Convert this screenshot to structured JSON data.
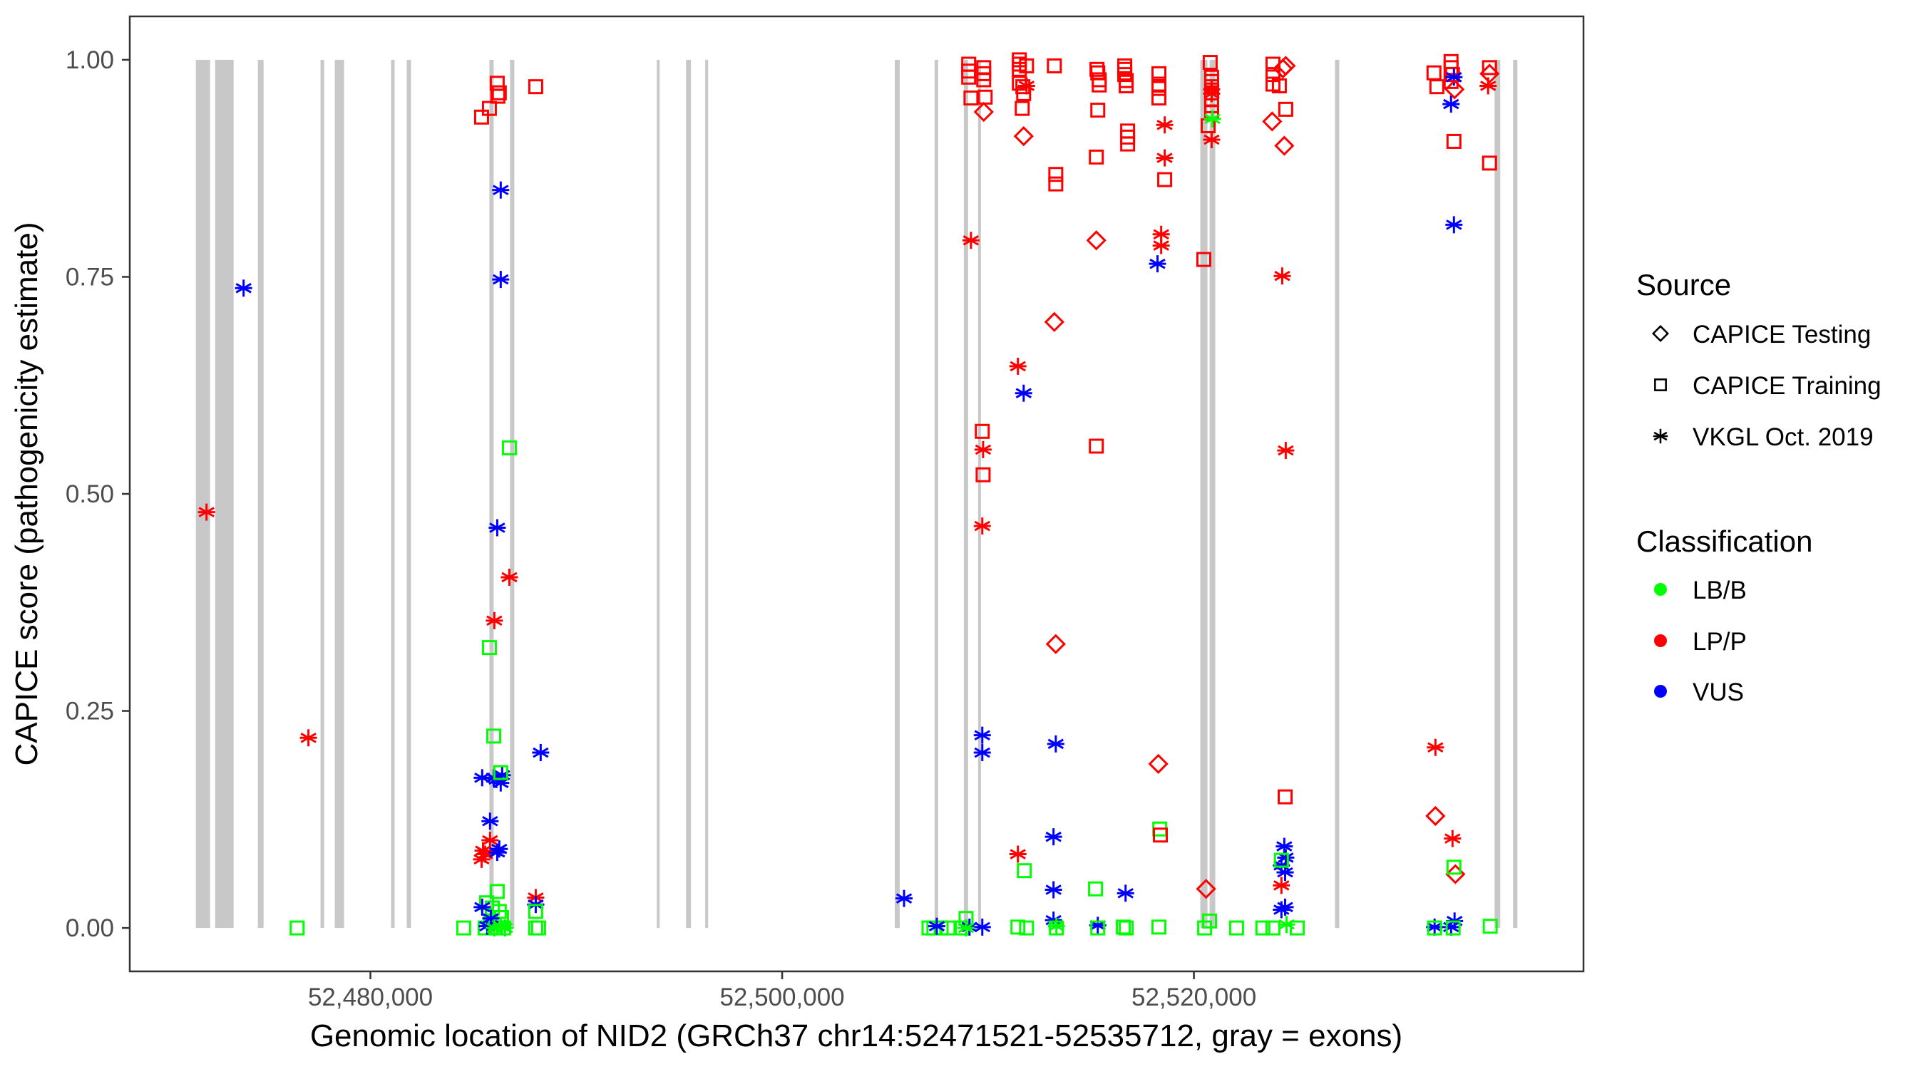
{
  "chart_data": {
    "type": "scatter",
    "title": "",
    "xlabel": "Genomic location of NID2 (GRCh37 chr14:52471521-52535712, gray = exons)",
    "ylabel": "CAPICE score (pathogenicity estimate)",
    "xlim": [
      52468311,
      52538922
    ],
    "ylim": [
      -0.05,
      1.05
    ],
    "grid": false,
    "x_ticks": [
      52480000,
      52500000,
      52520000
    ],
    "x_tick_labels": [
      "52,480,000",
      "52,500,000",
      "52,520,000"
    ],
    "y_ticks": [
      0,
      0.25,
      0.5,
      0.75,
      1.0
    ],
    "y_tick_labels": [
      "0.00",
      "0.25",
      "0.50",
      "0.75",
      "1.00"
    ],
    "exons": [
      [
        52471521,
        52472215
      ],
      [
        52472457,
        52473356
      ],
      [
        52474533,
        52474810
      ],
      [
        52477578,
        52477751
      ],
      [
        52478270,
        52478720
      ],
      [
        52481003,
        52481176
      ],
      [
        52481765,
        52481972
      ],
      [
        52485779,
        52485986
      ],
      [
        52486782,
        52486990
      ],
      [
        52493910,
        52494048
      ],
      [
        52495329,
        52495571
      ],
      [
        52496263,
        52496401
      ],
      [
        52505467,
        52505709
      ],
      [
        52507405,
        52507578
      ],
      [
        52508824,
        52509031
      ],
      [
        52509516,
        52509654
      ],
      [
        52520311,
        52520657
      ],
      [
        52520761,
        52521038
      ],
      [
        52526851,
        52527059
      ],
      [
        52534602,
        52534879
      ],
      [
        52535502,
        52535712
      ]
    ],
    "exon_y_range": [
      0,
      1
    ],
    "legend": {
      "placement": "right",
      "source": {
        "title": "Source",
        "entries": [
          {
            "key": "T",
            "label": "CAPICE Testing",
            "shape": "diamond"
          },
          {
            "key": "R",
            "label": "CAPICE Training",
            "shape": "square"
          },
          {
            "key": "V",
            "label": "VKGL Oct. 2019",
            "shape": "asterisk"
          }
        ]
      },
      "classification": {
        "title": "Classification",
        "entries": [
          {
            "key": "B",
            "label": "LB/B",
            "color": "#00ff00"
          },
          {
            "key": "P",
            "label": "LP/P",
            "color": "#ff0000"
          },
          {
            "key": "U",
            "label": "VUS",
            "color": "#0000ff"
          }
        ]
      }
    },
    "colors": {
      "exon": "#c8c8c8",
      "panel_border": "#333333",
      "tick_text": "#4d4d4d"
    },
    "point_fields": [
      "position",
      "score",
      "source",
      "classification"
    ],
    "points": [
      [
        52472040,
        0.479,
        "V",
        "P"
      ],
      [
        52473840,
        0.737,
        "V",
        "U"
      ],
      [
        52476990,
        0.219,
        "V",
        "P"
      ],
      [
        52476440,
        0.0,
        "R",
        "B"
      ],
      [
        52486160,
        0.973,
        "R",
        "P"
      ],
      [
        52486190,
        0.958,
        "R",
        "P"
      ],
      [
        52486260,
        0.962,
        "R",
        "P"
      ],
      [
        52485780,
        0.944,
        "R",
        "P"
      ],
      [
        52485400,
        0.934,
        "R",
        "P"
      ],
      [
        52488030,
        0.969,
        "R",
        "P"
      ],
      [
        52486330,
        0.85,
        "V",
        "U"
      ],
      [
        52486330,
        0.747,
        "V",
        "U"
      ],
      [
        52486160,
        0.461,
        "V",
        "U"
      ],
      [
        52486750,
        0.553,
        "R",
        "B"
      ],
      [
        52486750,
        0.404,
        "V",
        "P"
      ],
      [
        52486020,
        0.354,
        "V",
        "P"
      ],
      [
        52485780,
        0.323,
        "R",
        "B"
      ],
      [
        52485990,
        0.221,
        "R",
        "B"
      ],
      [
        52488270,
        0.202,
        "V",
        "U"
      ],
      [
        52485430,
        0.173,
        "V",
        "U"
      ],
      [
        52485990,
        0.173,
        "V",
        "U"
      ],
      [
        52486400,
        0.176,
        "V",
        "U"
      ],
      [
        52486330,
        0.167,
        "V",
        "U"
      ],
      [
        52486120,
        0.171,
        "V",
        "U"
      ],
      [
        52486330,
        0.179,
        "R",
        "B"
      ],
      [
        52485810,
        0.123,
        "V",
        "U"
      ],
      [
        52485810,
        0.101,
        "V",
        "P"
      ],
      [
        52485470,
        0.089,
        "V",
        "P"
      ],
      [
        52485400,
        0.079,
        "V",
        "P"
      ],
      [
        52485570,
        0.085,
        "V",
        "P"
      ],
      [
        52486160,
        0.087,
        "V",
        "U"
      ],
      [
        52486260,
        0.091,
        "V",
        "U"
      ],
      [
        52486160,
        0.042,
        "R",
        "B"
      ],
      [
        52485640,
        0.029,
        "R",
        "B"
      ],
      [
        52485920,
        0.023,
        "R",
        "B"
      ],
      [
        52486260,
        0.019,
        "R",
        "B"
      ],
      [
        52486370,
        0.012,
        "R",
        "B"
      ],
      [
        52485850,
        0.007,
        "R",
        "B"
      ],
      [
        52485570,
        0.0,
        "R",
        "B"
      ],
      [
        52486090,
        0.0,
        "R",
        "B"
      ],
      [
        52486470,
        0.0,
        "R",
        "B"
      ],
      [
        52484530,
        0.0,
        "R",
        "B"
      ],
      [
        52485430,
        0.024,
        "V",
        "U"
      ],
      [
        52485670,
        0.002,
        "V",
        "U"
      ],
      [
        52485850,
        0.011,
        "V",
        "U"
      ],
      [
        52486020,
        0.0,
        "V",
        "B"
      ],
      [
        52486540,
        0.0,
        "V",
        "B"
      ],
      [
        52486330,
        0.002,
        "V",
        "B"
      ],
      [
        52488030,
        0.035,
        "V",
        "P"
      ],
      [
        52488030,
        0.027,
        "V",
        "U"
      ],
      [
        52488030,
        0.019,
        "R",
        "B"
      ],
      [
        52488030,
        0.0,
        "R",
        "B"
      ],
      [
        52488170,
        0.0,
        "R",
        "B"
      ],
      [
        52505920,
        0.034,
        "V",
        "U"
      ],
      [
        52507130,
        0.0,
        "R",
        "B"
      ],
      [
        52507370,
        0.0,
        "R",
        "B"
      ],
      [
        52507720,
        0.0,
        "R",
        "B"
      ],
      [
        52508060,
        0.0,
        "R",
        "B"
      ],
      [
        52507510,
        0.002,
        "V",
        "U"
      ],
      [
        52508930,
        0.011,
        "R",
        "B"
      ],
      [
        52508750,
        0.0,
        "R",
        "B"
      ],
      [
        52509100,
        0.001,
        "V",
        "U"
      ],
      [
        52509720,
        0.001,
        "V",
        "U"
      ],
      [
        52508930,
        0.0,
        "V",
        "B"
      ],
      [
        52509060,
        0.995,
        "R",
        "P"
      ],
      [
        52509060,
        0.987,
        "R",
        "P"
      ],
      [
        52509060,
        0.98,
        "R",
        "P"
      ],
      [
        52509790,
        0.991,
        "R",
        "P"
      ],
      [
        52509790,
        0.984,
        "R",
        "P"
      ],
      [
        52509790,
        0.977,
        "R",
        "P"
      ],
      [
        52509170,
        0.956,
        "R",
        "P"
      ],
      [
        52509860,
        0.957,
        "R",
        "P"
      ],
      [
        52509790,
        0.94,
        "T",
        "P"
      ],
      [
        52509170,
        0.792,
        "V",
        "P"
      ],
      [
        52509720,
        0.572,
        "R",
        "P"
      ],
      [
        52509760,
        0.522,
        "R",
        "P"
      ],
      [
        52509760,
        0.551,
        "V",
        "P"
      ],
      [
        52509720,
        0.463,
        "V",
        "P"
      ],
      [
        52509720,
        0.222,
        "V",
        "U"
      ],
      [
        52509720,
        0.202,
        "V",
        "U"
      ],
      [
        52511520,
        1.0,
        "R",
        "P"
      ],
      [
        52511520,
        0.995,
        "R",
        "P"
      ],
      [
        52511870,
        0.993,
        "R",
        "P"
      ],
      [
        52511520,
        0.989,
        "R",
        "P"
      ],
      [
        52511520,
        0.973,
        "R",
        "P"
      ],
      [
        52511690,
        0.969,
        "R",
        "P"
      ],
      [
        52511730,
        0.961,
        "R",
        "P"
      ],
      [
        52511660,
        0.944,
        "R",
        "P"
      ],
      [
        52511870,
        0.97,
        "V",
        "P"
      ],
      [
        52511730,
        0.912,
        "T",
        "P"
      ],
      [
        52511450,
        0.647,
        "V",
        "P"
      ],
      [
        52511730,
        0.616,
        "V",
        "U"
      ],
      [
        52511450,
        0.085,
        "V",
        "P"
      ],
      [
        52511760,
        0.066,
        "R",
        "B"
      ],
      [
        52511450,
        0.001,
        "R",
        "B"
      ],
      [
        52511870,
        0.0,
        "R",
        "B"
      ],
      [
        52513220,
        0.993,
        "R",
        "P"
      ],
      [
        52513290,
        0.868,
        "R",
        "P"
      ],
      [
        52513290,
        0.857,
        "R",
        "P"
      ],
      [
        52513220,
        0.698,
        "T",
        "P"
      ],
      [
        52513290,
        0.327,
        "T",
        "P"
      ],
      [
        52513290,
        0.212,
        "V",
        "U"
      ],
      [
        52513180,
        0.105,
        "V",
        "U"
      ],
      [
        52513180,
        0.044,
        "V",
        "U"
      ],
      [
        52513180,
        0.009,
        "V",
        "U"
      ],
      [
        52513320,
        0.0,
        "R",
        "B"
      ],
      [
        52513320,
        0.002,
        "V",
        "B"
      ],
      [
        52515290,
        0.989,
        "R",
        "P"
      ],
      [
        52515330,
        0.985,
        "R",
        "P"
      ],
      [
        52515400,
        0.977,
        "R",
        "P"
      ],
      [
        52515400,
        0.971,
        "R",
        "P"
      ],
      [
        52515330,
        0.942,
        "R",
        "P"
      ],
      [
        52515260,
        0.888,
        "R",
        "P"
      ],
      [
        52515260,
        0.792,
        "T",
        "P"
      ],
      [
        52515260,
        0.555,
        "R",
        "P"
      ],
      [
        52515220,
        0.045,
        "R",
        "B"
      ],
      [
        52515330,
        0.003,
        "V",
        "U"
      ],
      [
        52515330,
        0.0,
        "R",
        "B"
      ],
      [
        52516680,
        0.04,
        "V",
        "U"
      ],
      [
        52516640,
        0.993,
        "R",
        "P"
      ],
      [
        52516640,
        0.989,
        "R",
        "P"
      ],
      [
        52516640,
        0.983,
        "R",
        "P"
      ],
      [
        52516710,
        0.976,
        "R",
        "P"
      ],
      [
        52516710,
        0.97,
        "R",
        "P"
      ],
      [
        52516780,
        0.918,
        "R",
        "P"
      ],
      [
        52516780,
        0.911,
        "R",
        "P"
      ],
      [
        52516780,
        0.903,
        "R",
        "P"
      ],
      [
        52516570,
        0.001,
        "R",
        "B"
      ],
      [
        52516710,
        0.0,
        "R",
        "B"
      ],
      [
        52518300,
        0.984,
        "R",
        "P"
      ],
      [
        52518300,
        0.972,
        "R",
        "P"
      ],
      [
        52518300,
        0.967,
        "R",
        "P"
      ],
      [
        52518300,
        0.956,
        "R",
        "P"
      ],
      [
        52518580,
        0.862,
        "R",
        "P"
      ],
      [
        52518580,
        0.925,
        "V",
        "P"
      ],
      [
        52518580,
        0.887,
        "V",
        "P"
      ],
      [
        52518410,
        0.799,
        "V",
        "P"
      ],
      [
        52518410,
        0.786,
        "V",
        "P"
      ],
      [
        52518230,
        0.765,
        "V",
        "U"
      ],
      [
        52518270,
        0.189,
        "T",
        "P"
      ],
      [
        52518340,
        0.114,
        "R",
        "B"
      ],
      [
        52518370,
        0.107,
        "R",
        "P"
      ],
      [
        52518300,
        0.001,
        "R",
        "B"
      ],
      [
        52520790,
        0.997,
        "R",
        "P"
      ],
      [
        52520860,
        0.98,
        "R",
        "P"
      ],
      [
        52520860,
        0.975,
        "R",
        "P"
      ],
      [
        52520860,
        0.969,
        "R",
        "P"
      ],
      [
        52520860,
        0.962,
        "R",
        "P"
      ],
      [
        52520860,
        0.954,
        "R",
        "P"
      ],
      [
        52520860,
        0.947,
        "R",
        "P"
      ],
      [
        52520860,
        0.94,
        "R",
        "P"
      ],
      [
        52520690,
        0.924,
        "R",
        "P"
      ],
      [
        52520480,
        0.77,
        "R",
        "P"
      ],
      [
        52520860,
        0.966,
        "V",
        "P"
      ],
      [
        52520860,
        0.961,
        "V",
        "P"
      ],
      [
        52520860,
        0.908,
        "V",
        "P"
      ],
      [
        52520900,
        0.932,
        "V",
        "B"
      ],
      [
        52520590,
        0.045,
        "T",
        "P"
      ],
      [
        52520520,
        0.0,
        "R",
        "B"
      ],
      [
        52520760,
        0.008,
        "R",
        "B"
      ],
      [
        52522070,
        0.0,
        "R",
        "B"
      ],
      [
        52523840,
        0.995,
        "R",
        "P"
      ],
      [
        52523840,
        0.983,
        "R",
        "P"
      ],
      [
        52523840,
        0.972,
        "R",
        "P"
      ],
      [
        52524150,
        0.97,
        "R",
        "P"
      ],
      [
        52524460,
        0.943,
        "R",
        "P"
      ],
      [
        52524430,
        0.151,
        "R",
        "P"
      ],
      [
        52524460,
        0.993,
        "T",
        "P"
      ],
      [
        52524320,
        0.99,
        "T",
        "P"
      ],
      [
        52523800,
        0.929,
        "T",
        "P"
      ],
      [
        52524390,
        0.901,
        "T",
        "P"
      ],
      [
        52524290,
        0.751,
        "V",
        "P"
      ],
      [
        52524460,
        0.55,
        "V",
        "P"
      ],
      [
        52524250,
        0.049,
        "V",
        "P"
      ],
      [
        52524390,
        0.094,
        "V",
        "U"
      ],
      [
        52524460,
        0.081,
        "V",
        "U"
      ],
      [
        52524250,
        0.072,
        "V",
        "U"
      ],
      [
        52524430,
        0.064,
        "V",
        "U"
      ],
      [
        52524250,
        0.021,
        "V",
        "U"
      ],
      [
        52524430,
        0.024,
        "V",
        "U"
      ],
      [
        52524250,
        0.078,
        "R",
        "B"
      ],
      [
        52523350,
        0.0,
        "R",
        "B"
      ],
      [
        52523840,
        0.0,
        "R",
        "B"
      ],
      [
        52525020,
        0.0,
        "R",
        "B"
      ],
      [
        52524500,
        0.004,
        "V",
        "B"
      ],
      [
        52531660,
        0.985,
        "R",
        "P"
      ],
      [
        52531800,
        0.969,
        "R",
        "P"
      ],
      [
        52532490,
        0.998,
        "R",
        "P"
      ],
      [
        52532490,
        0.991,
        "R",
        "P"
      ],
      [
        52532560,
        0.983,
        "R",
        "P"
      ],
      [
        52532490,
        0.975,
        "R",
        "P"
      ],
      [
        52532630,
        0.906,
        "R",
        "P"
      ],
      [
        52534360,
        0.991,
        "R",
        "P"
      ],
      [
        52534360,
        0.881,
        "R",
        "P"
      ],
      [
        52532630,
        0.98,
        "V",
        "U"
      ],
      [
        52532490,
        0.949,
        "V",
        "U"
      ],
      [
        52532630,
        0.81,
        "V",
        "U"
      ],
      [
        52532660,
        0.966,
        "T",
        "P"
      ],
      [
        52534360,
        0.984,
        "T",
        "P"
      ],
      [
        52534290,
        0.97,
        "V",
        "P"
      ],
      [
        52531730,
        0.208,
        "V",
        "P"
      ],
      [
        52532560,
        0.103,
        "V",
        "P"
      ],
      [
        52531730,
        0.129,
        "T",
        "P"
      ],
      [
        52532700,
        0.062,
        "T",
        "P"
      ],
      [
        52532630,
        0.07,
        "R",
        "B"
      ],
      [
        52531690,
        0.001,
        "V",
        "U"
      ],
      [
        52532660,
        0.008,
        "V",
        "U"
      ],
      [
        52532490,
        0.001,
        "V",
        "U"
      ],
      [
        52531690,
        0.0,
        "R",
        "B"
      ],
      [
        52532590,
        0.0,
        "R",
        "B"
      ],
      [
        52534390,
        0.002,
        "R",
        "B"
      ]
    ]
  }
}
